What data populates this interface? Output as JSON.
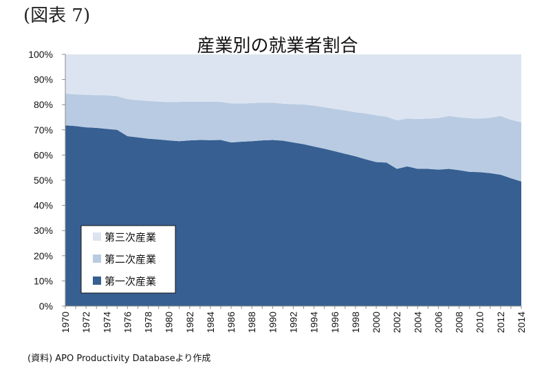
{
  "figure_label": "(図表 7)",
  "source_note": "(資料) APO Productivity Databaseより作成",
  "colors": {
    "tertiary": "#dce4f1",
    "secondary": "#b8cbe2",
    "primary": "#375f92"
  },
  "chart_data": {
    "type": "area",
    "stacked": true,
    "percent": true,
    "title": "産業別の就業者割合",
    "x": [
      1970,
      1971,
      1972,
      1973,
      1974,
      1975,
      1976,
      1977,
      1978,
      1979,
      1980,
      1981,
      1982,
      1983,
      1984,
      1985,
      1986,
      1987,
      1988,
      1989,
      1990,
      1991,
      1992,
      1993,
      1994,
      1995,
      1996,
      1997,
      1998,
      1999,
      2000,
      2001,
      2002,
      2003,
      2004,
      2005,
      2006,
      2007,
      2008,
      2009,
      2010,
      2011,
      2012,
      2013,
      2014
    ],
    "x_tick_labels": [
      "1970",
      "1972",
      "1974",
      "1976",
      "1978",
      "1980",
      "1982",
      "1984",
      "1986",
      "1988",
      "1990",
      "1992",
      "1994",
      "1996",
      "1998",
      "2000",
      "2002",
      "2004",
      "2006",
      "2008",
      "2010",
      "2012",
      "2014"
    ],
    "y_tick_labels": [
      "0%",
      "10%",
      "20%",
      "30%",
      "40%",
      "50%",
      "60%",
      "70%",
      "80%",
      "90%",
      "100%"
    ],
    "ylim": [
      0,
      100
    ],
    "grid": false,
    "legend_position": "bottom-left",
    "series": [
      {
        "name": "第一次産業",
        "color": "#375f92",
        "values": [
          71.8,
          71.5,
          71.0,
          70.8,
          70.4,
          70.0,
          67.5,
          67.0,
          66.5,
          66.2,
          65.8,
          65.5,
          65.8,
          66.0,
          65.9,
          66.0,
          65.0,
          65.3,
          65.5,
          65.8,
          66.0,
          65.7,
          65.0,
          64.3,
          63.4,
          62.5,
          61.5,
          60.5,
          59.5,
          58.3,
          57.2,
          57.0,
          54.5,
          55.5,
          54.5,
          54.5,
          54.2,
          54.5,
          54.0,
          53.3,
          53.2,
          52.8,
          52.2,
          50.8,
          49.5
        ]
      },
      {
        "name": "第二次産業",
        "color": "#b8cbe2",
        "values": [
          12.6,
          12.6,
          12.9,
          13.0,
          13.3,
          13.4,
          14.7,
          14.8,
          15.0,
          15.0,
          15.2,
          15.6,
          15.4,
          15.2,
          15.3,
          15.1,
          15.5,
          15.2,
          15.1,
          15.0,
          14.8,
          14.7,
          15.2,
          15.8,
          16.2,
          16.5,
          16.8,
          17.2,
          17.5,
          18.2,
          18.6,
          18.2,
          19.3,
          19.0,
          19.8,
          20.0,
          20.5,
          21.0,
          21.0,
          21.3,
          21.3,
          22.0,
          23.3,
          23.2,
          23.5
        ]
      },
      {
        "name": "第三次産業",
        "color": "#dce4f1",
        "values": [
          15.6,
          15.9,
          16.1,
          16.2,
          16.3,
          16.6,
          17.8,
          18.2,
          18.5,
          18.8,
          19.0,
          18.9,
          18.8,
          18.8,
          18.8,
          18.9,
          19.5,
          19.5,
          19.4,
          19.2,
          19.2,
          19.6,
          19.8,
          19.9,
          20.4,
          21.0,
          21.7,
          22.3,
          23.0,
          23.5,
          24.2,
          24.8,
          26.2,
          25.5,
          25.7,
          25.5,
          25.3,
          24.5,
          25.0,
          25.4,
          25.5,
          25.2,
          24.5,
          26.0,
          27.0
        ]
      }
    ],
    "legend": [
      {
        "name": "第三次産業",
        "color": "#dce4f1"
      },
      {
        "name": "第二次産業",
        "color": "#b8cbe2"
      },
      {
        "name": "第一次産業",
        "color": "#375f92"
      }
    ]
  }
}
